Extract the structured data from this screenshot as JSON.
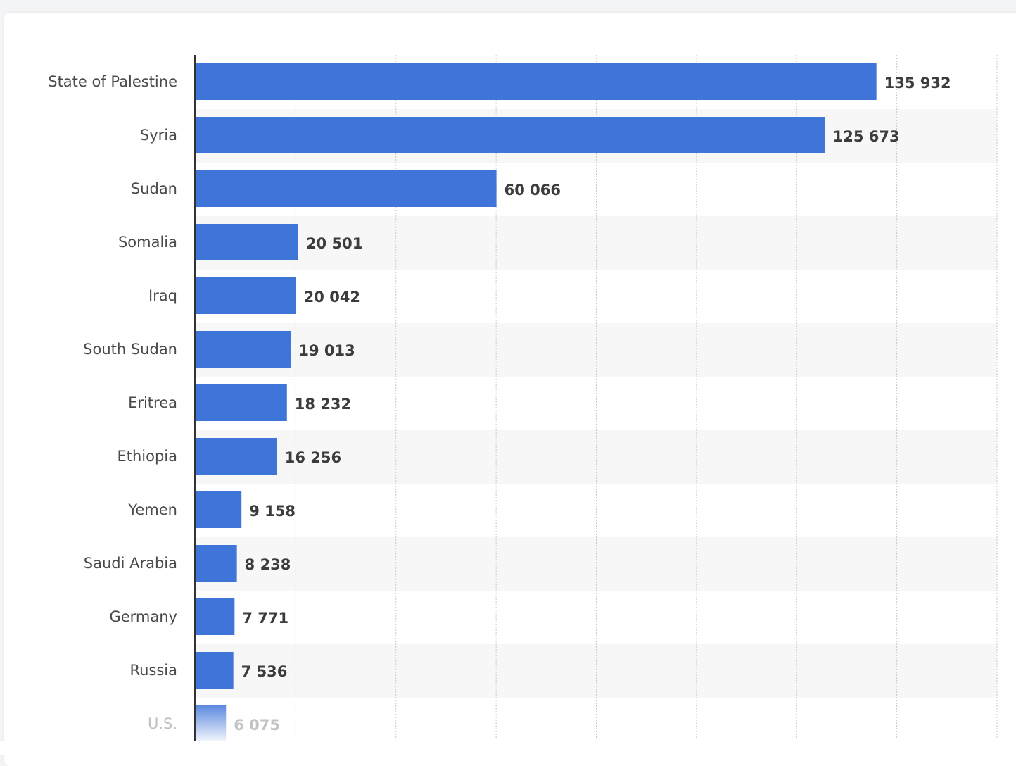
{
  "chart_data": {
    "type": "bar",
    "orientation": "horizontal",
    "title": "",
    "xlabel": "",
    "ylabel": "",
    "xlim": [
      0,
      160000
    ],
    "grid": true,
    "legend": "none",
    "bar_color": "#3f74d9",
    "categories": [
      "State of Palestine",
      "Syria",
      "Sudan",
      "Somalia",
      "Iraq",
      "South Sudan",
      "Eritrea",
      "Ethiopia",
      "Yemen",
      "Saudi Arabia",
      "Germany",
      "Russia",
      "U.S."
    ],
    "values": [
      135932,
      125673,
      60066,
      20501,
      20042,
      19013,
      18232,
      16256,
      9158,
      8238,
      7771,
      7536,
      6075
    ],
    "value_labels": [
      "135 932",
      "125 673",
      "60 066",
      "20 501",
      "20 042",
      "19 013",
      "18 232",
      "16 256",
      "9 158",
      "8 238",
      "7 771",
      "7 536",
      "6 075"
    ]
  }
}
